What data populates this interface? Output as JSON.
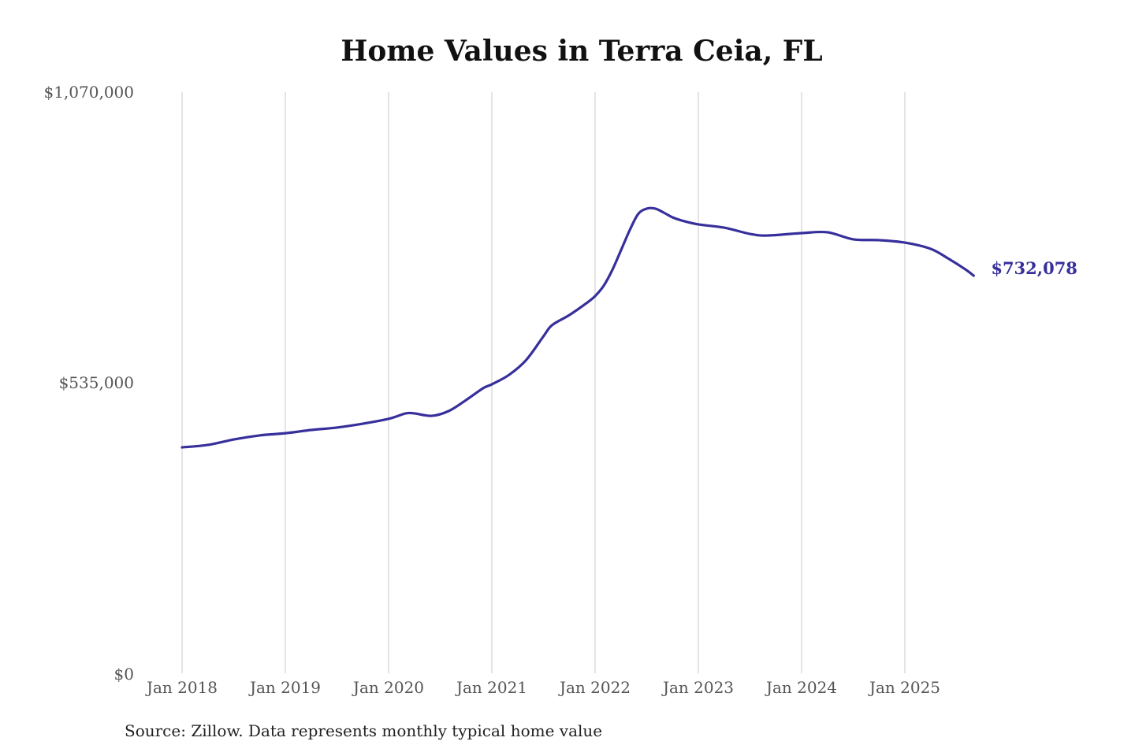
{
  "chart_data": {
    "type": "line",
    "title": "Home Values in Terra Ceia, FL",
    "xlabel": "",
    "ylabel": "",
    "ylim": [
      0,
      1070000
    ],
    "yticks": [
      0,
      535000,
      1070000
    ],
    "ytick_labels": [
      "$0",
      "$535,000",
      "$1,070,000"
    ],
    "xticks": [
      "2018-01",
      "2019-01",
      "2020-01",
      "2021-01",
      "2022-01",
      "2023-01",
      "2024-01",
      "2025-01"
    ],
    "xtick_labels": [
      "Jan 2018",
      "Jan 2019",
      "Jan 2020",
      "Jan 2021",
      "Jan 2022",
      "Jan 2023",
      "Jan 2024",
      "Jan 2025"
    ],
    "grid": "vertical",
    "line_color": "#372f9b",
    "end_label": "$732,078",
    "series": [
      {
        "x": [
          "2018-01",
          "2018-04",
          "2018-07",
          "2018-10",
          "2019-01",
          "2019-04",
          "2019-07",
          "2019-10",
          "2020-01",
          "2020-03",
          "2020-04",
          "2020-06",
          "2020-08",
          "2020-10",
          "2020-12",
          "2021-01",
          "2021-03",
          "2021-05",
          "2021-07",
          "2021-08",
          "2021-10",
          "2021-12",
          "2022-01",
          "2022-02",
          "2022-03",
          "2022-04",
          "2022-05",
          "2022-06",
          "2022-07",
          "2022-08",
          "2022-09",
          "2022-10",
          "2022-11",
          "2023-01",
          "2023-04",
          "2023-07",
          "2023-09",
          "2024-01",
          "2024-04",
          "2024-07",
          "2024-10",
          "2025-01",
          "2025-04",
          "2025-06",
          "2025-08",
          "2025-09"
        ],
        "values": [
          416000,
          420500,
          430500,
          438000,
          442000,
          448000,
          452500,
          459500,
          468500,
          478500,
          478500,
          474000,
          483000,
          503000,
          525000,
          532000,
          549500,
          577000,
          620500,
          641000,
          659500,
          681500,
          694500,
          713500,
          742500,
          778500,
          815000,
          845500,
          855500,
          855500,
          848000,
          839500,
          834000,
          826500,
          820500,
          809000,
          806000,
          810500,
          812000,
          799000,
          797500,
          793000,
          781500,
          764000,
          744000,
          732078
        ]
      }
    ]
  },
  "footer": {
    "source": "Source: Zillow. Data represents monthly typical home value"
  }
}
